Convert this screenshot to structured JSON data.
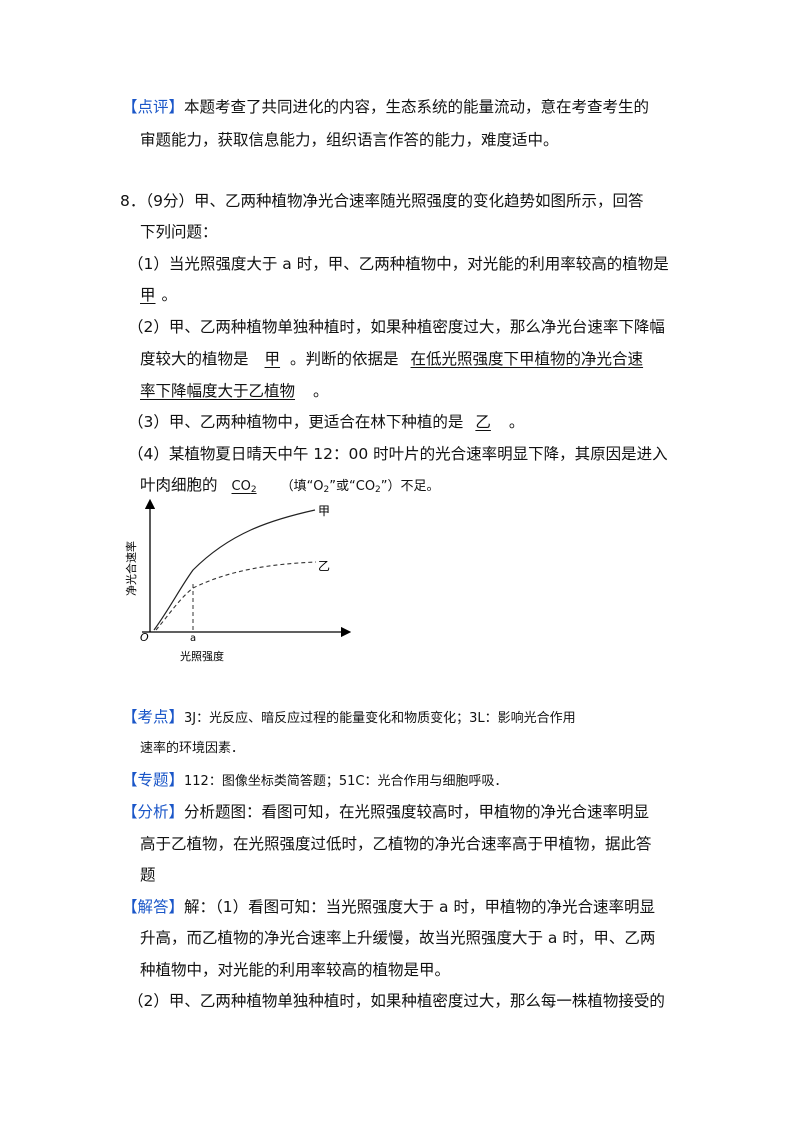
{
  "comment": {
    "tag": "【点评】",
    "line1": "本题考查了共同进化的内容，生态系统的能量流动，意在考查考生的",
    "line2": "审题能力，获取信息能力，组织语言作答的能力，难度适中。"
  },
  "question": {
    "number": "8．",
    "line1": "（9分）甲、乙两种植物净光合速率随光照强度的变化趋势如图所示，回答",
    "line2": "下列问题：",
    "q1": {
      "text": "（1）当光照强度大于 a 时，甲、乙两种植物中，对光能的利用率较高的植物是",
      "answer": "甲",
      "end": "。"
    },
    "q2": {
      "line1": "（2）甲、乙两种植物单独种植时，如果种植密度过大，那么净光台速率下降幅",
      "prefix": "度较大的植物是",
      "answer1": "甲",
      "middle": "。判断的依据是",
      "answer2a": "在低光照强度下甲植物的净光合速",
      "answer2b": "率下降幅度大于乙植物",
      "end": "。"
    },
    "q3": {
      "text": "（3）甲、乙两种植物中，更适合在林下种植的是",
      "answer": "乙",
      "end": "。"
    },
    "q4": {
      "line1": "（4）某植物夏日晴天中午 12：00 时叶片的光合速率明显下降，其原因是进入",
      "prefix": "叶肉细胞的",
      "answer_main": "CO",
      "answer_sub": "2",
      "fill_open": "（填“O",
      "fill_o_sub": "2",
      "fill_mid": "”或“CO",
      "fill_co_sub": "2",
      "fill_close": "”）不足。"
    }
  },
  "chart_data": {
    "type": "line",
    "ylabel": "净光合速率",
    "xlabel": "光照强度",
    "origin_label": "O",
    "x_marker_label": "a",
    "series": [
      {
        "name": "甲",
        "style": "solid"
      },
      {
        "name": "乙",
        "style": "dashed"
      }
    ]
  },
  "analysis": {
    "kaodian_tag": "【考点】",
    "kaodian_line1": "3J：光反应、暗反应过程的能量变化和物质变化；3L：影响光合作用",
    "kaodian_line2": "速率的环境因素．",
    "zhuanti_tag": "【专题】",
    "zhuanti_text": "112：图像坐标类简答题；51C：光合作用与细胞呼吸．",
    "fenxi_tag": "【分析】",
    "fenxi_line1": "分析题图：看图可知，在光照强度较高时，甲植物的净光合速率明显",
    "fenxi_line2": "高于乙植物，在光照强度过低时，乙植物的净光合速率高于甲植物，据此答",
    "fenxi_line3": "题",
    "jieda_tag": "【解答】",
    "jieda_line1": "解：（1）看图可知：当光照强度大于 a 时，甲植物的净光合速率明显",
    "jieda_line2": "升高，而乙植物的净光合速率上升缓慢，故当光照强度大于 a 时，甲、乙两",
    "jieda_line3": "种植物中，对光能的利用率较高的植物是甲。",
    "jieda_line4": "（2）甲、乙两种植物单独种植时，如果种植密度过大，那么每一株植物接受的"
  }
}
